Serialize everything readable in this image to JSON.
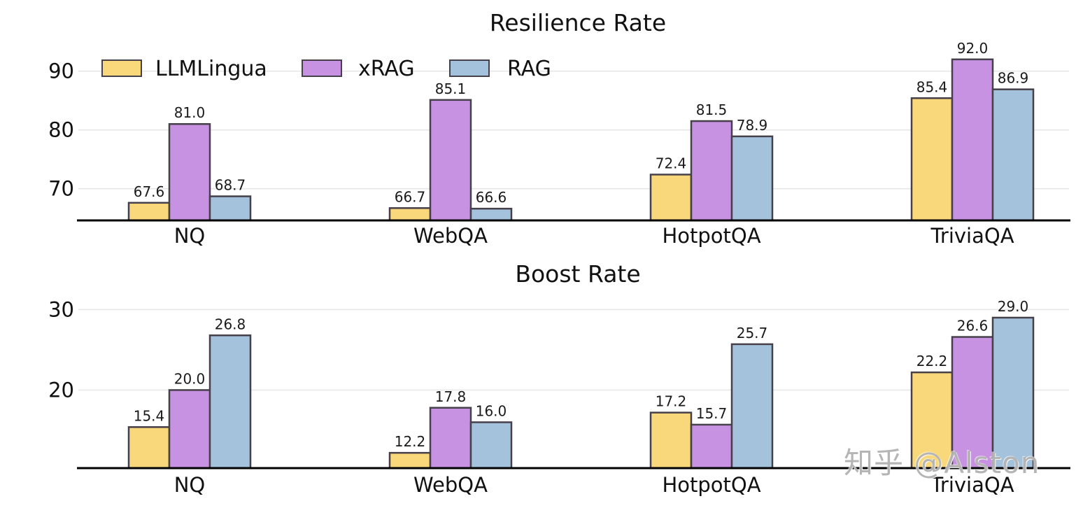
{
  "watermark": {
    "text": "知乎 @Alston"
  },
  "colors": {
    "edge": "#454049",
    "grid": "#e7e7e7",
    "axis": "#000000",
    "text": "#111111",
    "value_label": "#1a1a1a",
    "series": {
      "LLMLingua": "#F9D77B",
      "xRAG": "#C792E2",
      "RAG": "#A5C2DC"
    }
  },
  "legend": {
    "items": [
      "LLMLingua",
      "xRAG",
      "RAG"
    ],
    "position": "upper left"
  },
  "chart_data": [
    {
      "type": "bar",
      "title": "Resilience Rate",
      "categories": [
        "NQ",
        "WebQA",
        "HotpotQA",
        "TriviaQA"
      ],
      "series": [
        {
          "name": "LLMLingua",
          "color": "#F9D77B",
          "values": [
            67.6,
            66.7,
            72.4,
            85.4
          ]
        },
        {
          "name": "xRAG",
          "color": "#C792E2",
          "values": [
            81.0,
            85.1,
            81.5,
            92.0
          ]
        },
        {
          "name": "RAG",
          "color": "#A5C2DC",
          "values": [
            68.7,
            66.6,
            78.9,
            86.9
          ]
        }
      ],
      "yticks": [
        70,
        80,
        90
      ],
      "ylim": [
        64.6,
        95.5
      ],
      "grid": true,
      "legend": true,
      "xlabel": "",
      "ylabel": ""
    },
    {
      "type": "bar",
      "title": "Boost Rate",
      "categories": [
        "NQ",
        "WebQA",
        "HotpotQA",
        "TriviaQA"
      ],
      "series": [
        {
          "name": "LLMLingua",
          "color": "#F9D77B",
          "values": [
            15.4,
            12.2,
            17.2,
            22.2
          ]
        },
        {
          "name": "xRAG",
          "color": "#C792E2",
          "values": [
            20.0,
            17.8,
            15.7,
            26.6
          ]
        },
        {
          "name": "RAG",
          "color": "#A5C2DC",
          "values": [
            26.8,
            16.0,
            25.7,
            29.0
          ]
        }
      ],
      "yticks": [
        20,
        30
      ],
      "ylim": [
        10.3,
        31.8
      ],
      "grid": true,
      "legend": false,
      "xlabel": "",
      "ylabel": ""
    }
  ]
}
